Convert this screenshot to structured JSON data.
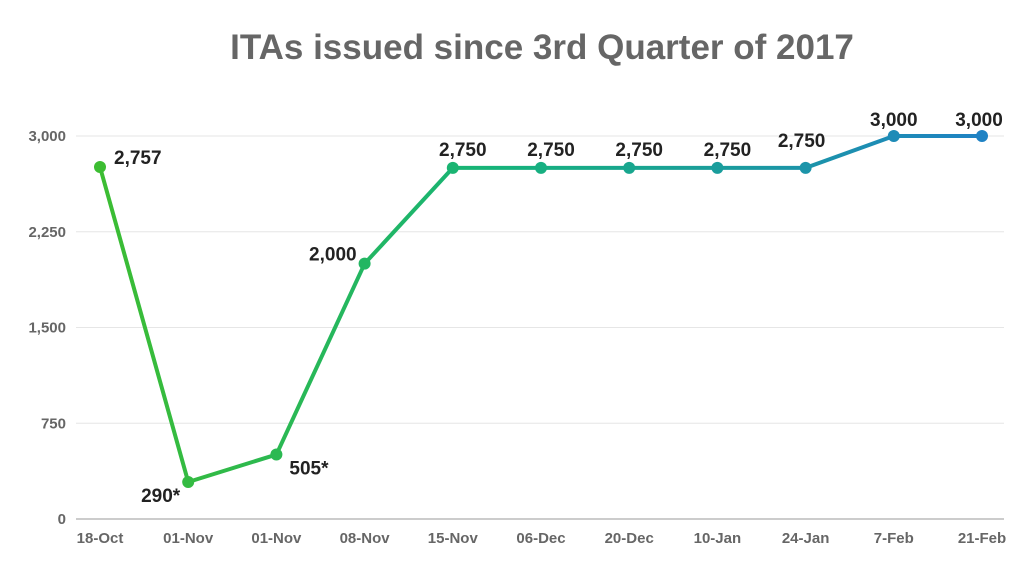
{
  "chart_data": {
    "type": "line",
    "title": "ITAs issued since 3rd Quarter of 2017",
    "xlabel": "",
    "ylabel": "",
    "categories": [
      "18-Oct",
      "01-Nov",
      "01-Nov",
      "08-Nov",
      "15-Nov",
      "06-Dec",
      "20-Dec",
      "10-Jan",
      "24-Jan",
      "7-Feb",
      "21-Feb"
    ],
    "values": [
      2757,
      290,
      505,
      2000,
      2750,
      2750,
      2750,
      2750,
      2750,
      3000,
      3000
    ],
    "data_labels": [
      "2,757",
      "290*",
      "505*",
      "2,000",
      "2,750",
      "2,750",
      "2,750",
      "2,750",
      "2,750",
      "3,000",
      "3,000"
    ],
    "ylim": [
      0,
      3000
    ],
    "yticks": [
      0,
      750,
      1500,
      2250,
      3000
    ],
    "ytick_labels": [
      "0",
      "750",
      "1,500",
      "2,250",
      "3,000"
    ],
    "grid": true,
    "legend": "none",
    "colors": {
      "gradient_start": "#3cbd32",
      "gradient_mid": "#16b37a",
      "gradient_end": "#1f82c4",
      "grid": "#e6e6e6",
      "axis": "#999999"
    }
  }
}
